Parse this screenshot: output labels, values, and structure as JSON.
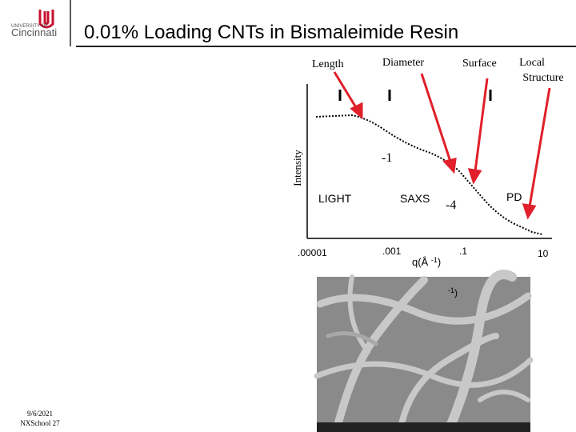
{
  "logo": {
    "small": "UNIVERSITY OF",
    "name": "Cincinnati"
  },
  "title": "0.01% Loading CNTs in Bismaleimide Resin",
  "plot": {
    "scale_labels": {
      "length": "Length",
      "diameter": "Diameter",
      "surface": "Surface",
      "local_structure": [
        "Local",
        "Structure"
      ]
    },
    "y_label": "Intensity",
    "slope_1": "-1",
    "slope_2": "-4",
    "regions": [
      "LIGHT",
      "SAXS",
      "PD"
    ],
    "x_tick_labels": [
      ".00001",
      ".001",
      ".1",
      "10"
    ],
    "x_label": {
      "main": "q(Å ",
      "sup": "-1",
      "close": ")"
    },
    "stray_label": {
      "sup": "-1",
      "close": ")"
    }
  },
  "footer": [
    "9/6/2021",
    "NXSchool 27"
  ]
}
